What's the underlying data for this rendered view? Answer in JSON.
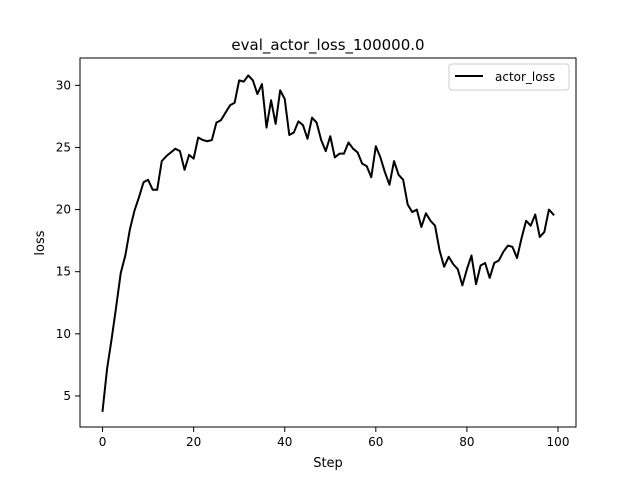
{
  "chart_data": {
    "type": "line",
    "title": "eval_actor_loss_100000.0",
    "xlabel": "Step",
    "ylabel": "loss",
    "xlim": [
      -4.95,
      103.95
    ],
    "ylim": [
      2.5,
      32.2
    ],
    "xticks": [
      0,
      20,
      40,
      60,
      80,
      100
    ],
    "yticks": [
      5,
      10,
      15,
      20,
      25,
      30
    ],
    "grid": false,
    "legend_position": "top-right",
    "series": [
      {
        "name": "actor_loss",
        "color": "#000000",
        "x": [
          0,
          1,
          2,
          3,
          4,
          5,
          6,
          7,
          8,
          9,
          10,
          11,
          12,
          13,
          14,
          15,
          16,
          17,
          18,
          19,
          20,
          21,
          22,
          23,
          24,
          25,
          26,
          27,
          28,
          29,
          30,
          31,
          32,
          33,
          34,
          35,
          36,
          37,
          38,
          39,
          40,
          41,
          42,
          43,
          44,
          45,
          46,
          47,
          48,
          49,
          50,
          51,
          52,
          53,
          54,
          55,
          56,
          57,
          58,
          59,
          60,
          61,
          62,
          63,
          64,
          65,
          66,
          67,
          68,
          69,
          70,
          71,
          72,
          73,
          74,
          75,
          76,
          77,
          78,
          79,
          80,
          81,
          82,
          83,
          84,
          85,
          86,
          87,
          88,
          89,
          90,
          91,
          92,
          93,
          94,
          95,
          96,
          97,
          98,
          99
        ],
        "y": [
          3.8,
          7.2,
          9.6,
          12.2,
          14.9,
          16.3,
          18.4,
          19.9,
          21.0,
          22.2,
          22.4,
          21.6,
          21.6,
          23.9,
          24.3,
          24.6,
          24.9,
          24.7,
          23.2,
          24.4,
          24.1,
          25.8,
          25.6,
          25.5,
          25.6,
          27.0,
          27.2,
          27.8,
          28.4,
          28.6,
          30.4,
          30.3,
          30.8,
          30.4,
          29.3,
          30.1,
          26.6,
          28.8,
          26.9,
          29.6,
          28.9,
          26.0,
          26.2,
          27.1,
          26.8,
          25.7,
          27.4,
          27.0,
          25.6,
          24.7,
          25.9,
          24.2,
          24.5,
          24.5,
          25.4,
          24.9,
          24.6,
          23.7,
          23.5,
          22.6,
          25.1,
          24.2,
          23.0,
          22.0,
          23.9,
          22.8,
          22.4,
          20.4,
          19.8,
          20.0,
          18.6,
          19.7,
          19.1,
          18.7,
          16.7,
          15.4,
          16.2,
          15.6,
          15.2,
          13.9,
          15.2,
          16.3,
          14.0,
          15.5,
          15.7,
          14.5,
          15.7,
          15.9,
          16.6,
          17.1,
          17.0,
          16.1,
          17.7,
          19.1,
          18.7,
          19.6,
          17.8,
          18.2,
          20.0,
          19.6
        ]
      }
    ]
  }
}
